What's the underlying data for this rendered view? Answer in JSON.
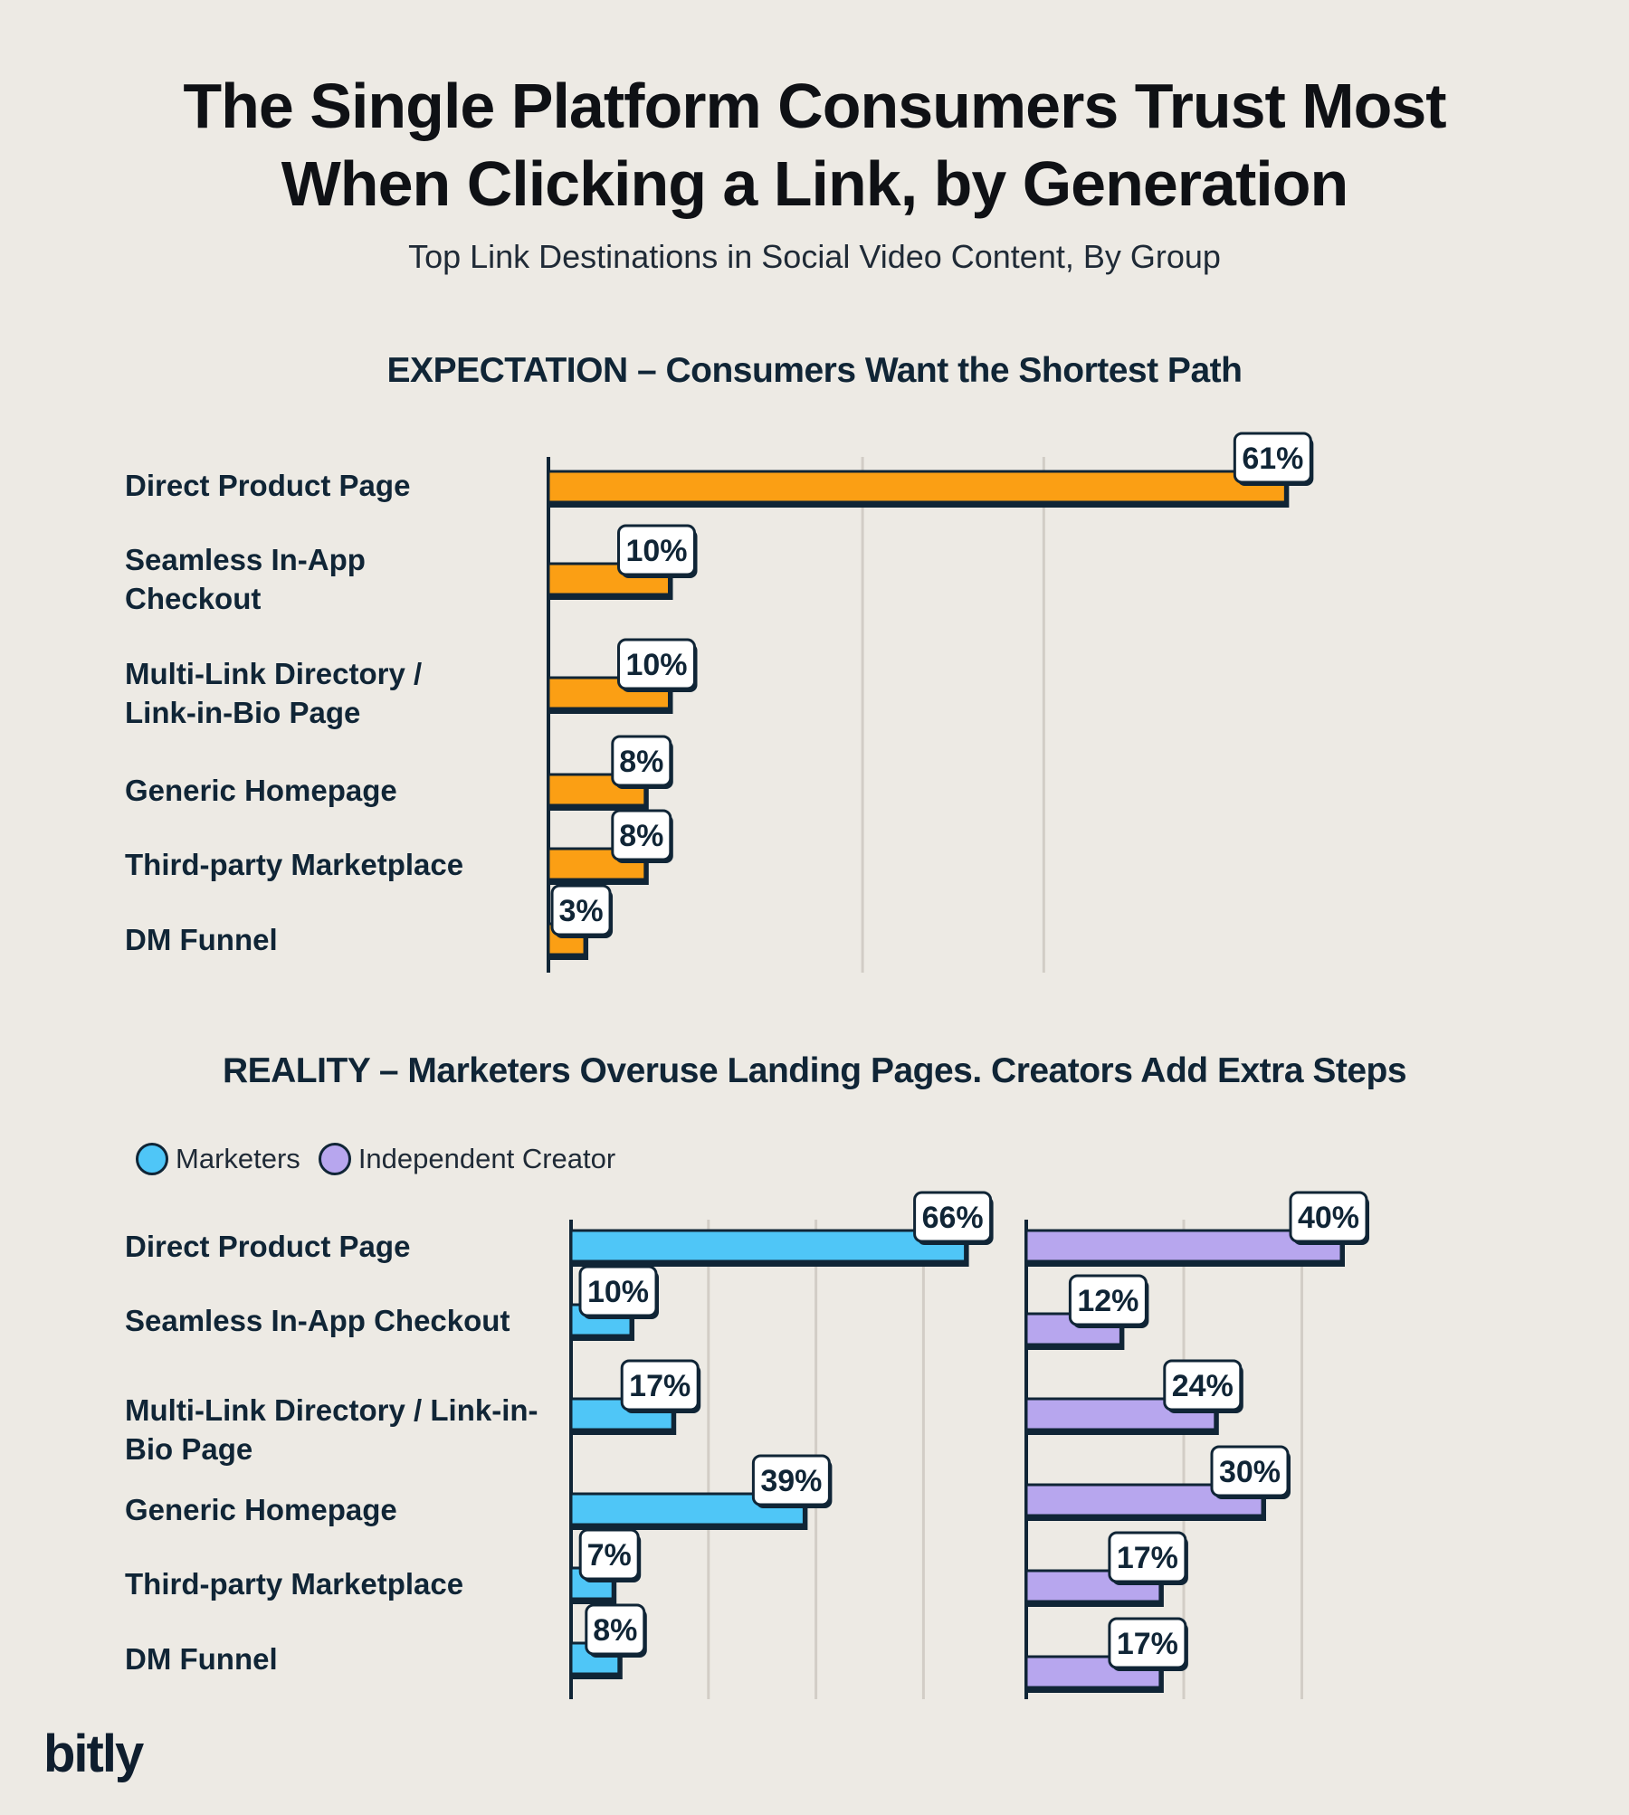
{
  "title": "The Single Platform Consumers Trust Most When Clicking a Link, by Generation",
  "subtitle": "Top Link Destinations in Social Video Content, By Group",
  "logo": "bitly",
  "colors": {
    "expectation": "#fb9f14",
    "marketers": "#4fc6f7",
    "creators": "#b7a6ee",
    "outline": "#102536",
    "grid": "#d2cdc6"
  },
  "chart_data": [
    {
      "type": "bar",
      "orientation": "horizontal",
      "title": "EXPECTATION – Consumers Want the Shortest Path",
      "categories": [
        "Direct Product Page",
        "Seamless In-App Checkout",
        "Multi-Link Directory / Link-in-Bio Page",
        "Generic Homepage",
        "Third-party Marketplace",
        "DM Funnel"
      ],
      "category_lines": [
        [
          "Direct Product Page"
        ],
        [
          "Seamless In-App",
          "Checkout"
        ],
        [
          "Multi-Link Directory /",
          "Link-in-Bio Page"
        ],
        [
          "Generic Homepage"
        ],
        [
          "Third-party Marketplace"
        ],
        [
          "DM Funnel"
        ]
      ],
      "values": [
        61,
        10,
        10,
        8,
        8,
        3
      ],
      "labels": [
        "61%",
        "10%",
        "10%",
        "8%",
        "8%",
        "3%"
      ],
      "xlim": [
        0,
        75
      ],
      "grid": true
    },
    {
      "type": "bar",
      "orientation": "horizontal",
      "title": "REALITY – Marketers Overuse Landing Pages. Creators Add Extra Steps",
      "categories": [
        "Direct Product Page",
        "Seamless In-App Checkout",
        "Multi-Link Directory / Link-in-Bio Page",
        "Generic Homepage",
        "Third-party Marketplace",
        "DM Funnel"
      ],
      "category_lines": [
        [
          "Direct Product Page"
        ],
        [
          "Seamless In-App Checkout"
        ],
        [
          "Multi-Link Directory / Link-in-",
          "Bio Page"
        ],
        [
          "Generic Homepage"
        ],
        [
          "Third-party Marketplace"
        ],
        [
          "DM Funnel"
        ]
      ],
      "series": [
        {
          "name": "Marketers",
          "values": [
            66,
            10,
            17,
            39,
            7,
            8
          ],
          "labels": [
            "66%",
            "10%",
            "17%",
            "39%",
            "7%",
            "8%"
          ]
        },
        {
          "name": "Independent Creator",
          "values": [
            40,
            12,
            24,
            30,
            17,
            17
          ],
          "labels": [
            "40%",
            "12%",
            "24%",
            "30%",
            "17%",
            "17%"
          ]
        }
      ],
      "legend": "top-left",
      "grid": true
    }
  ]
}
